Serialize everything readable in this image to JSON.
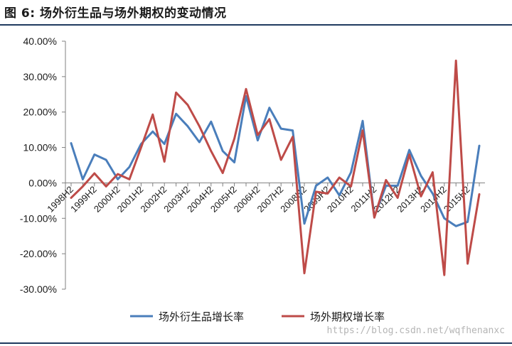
{
  "figure": {
    "title": "图 6:  场外衍生品与场外期权的变动情况"
  },
  "watermark": "https://blog.csdn.net/wqfhenanxc",
  "colors": {
    "series1": "#4a7ebb",
    "series2": "#be4b48",
    "axis": "#808080"
  },
  "chart_data": {
    "type": "line",
    "title": "",
    "xlabel": "",
    "ylabel": "",
    "ylim": [
      -0.3,
      0.4
    ],
    "ytick_values": [
      0.4,
      0.3,
      0.2,
      0.1,
      0.0,
      -0.1,
      -0.2,
      -0.3
    ],
    "ytick_labels": [
      "40.00%",
      "30.00%",
      "20.00%",
      "10.00%",
      "0.00%",
      "-10.00%",
      "-20.00%",
      "-30.00%"
    ],
    "x": [
      "1998H2",
      "1999H1",
      "1999H2",
      "2000H1",
      "2000H2",
      "2001H1",
      "2001H2",
      "2002H1",
      "2002H2",
      "2003H1",
      "2003H2",
      "2004H1",
      "2004H2",
      "2005H1",
      "2005H2",
      "2006H1",
      "2006H2",
      "2007H1",
      "2007H2",
      "2008H1",
      "2008H2",
      "2009H1",
      "2009H2",
      "2010H1",
      "2010H2",
      "2011H1",
      "2011H2",
      "2012H1",
      "2012H2",
      "2013H1",
      "2013H2",
      "2014H1",
      "2014H2",
      "2015H1",
      "2015H2",
      "2016H1"
    ],
    "xtick_labels": [
      "1998H2",
      "1999H2",
      "2000H2",
      "2001H2",
      "2002H2",
      "2003H2",
      "2004H2",
      "2005H2",
      "2006H2",
      "2007H2",
      "2008H2",
      "2009H2",
      "2010H2",
      "2011H2",
      "2012H2",
      "2013H2",
      "2014H2",
      "2015H2"
    ],
    "grid": false,
    "legend": "bottom",
    "series": [
      {
        "name": "场外衍生品增长率",
        "values": [
          0.112,
          0.01,
          0.08,
          0.065,
          0.01,
          0.045,
          0.11,
          0.145,
          0.11,
          0.195,
          0.16,
          0.115,
          0.173,
          0.09,
          0.058,
          0.245,
          0.12,
          0.212,
          0.153,
          0.148,
          -0.115,
          -0.008,
          0.015,
          -0.035,
          0.03,
          0.175,
          -0.095,
          -0.008,
          -0.008,
          0.093,
          0.02,
          -0.03,
          -0.1,
          -0.122,
          -0.11,
          0.105
        ]
      },
      {
        "name": "场外期权增长率",
        "values": [
          -0.042,
          -0.01,
          0.027,
          -0.01,
          0.025,
          0.01,
          0.1,
          0.193,
          0.06,
          0.255,
          0.22,
          0.16,
          0.09,
          0.028,
          0.125,
          0.265,
          0.135,
          0.18,
          0.065,
          0.13,
          -0.255,
          -0.025,
          -0.03,
          0.015,
          -0.01,
          0.148,
          -0.098,
          0.008,
          -0.042,
          0.08,
          -0.038,
          0.03,
          -0.26,
          0.345,
          -0.228,
          -0.032
        ]
      }
    ]
  }
}
